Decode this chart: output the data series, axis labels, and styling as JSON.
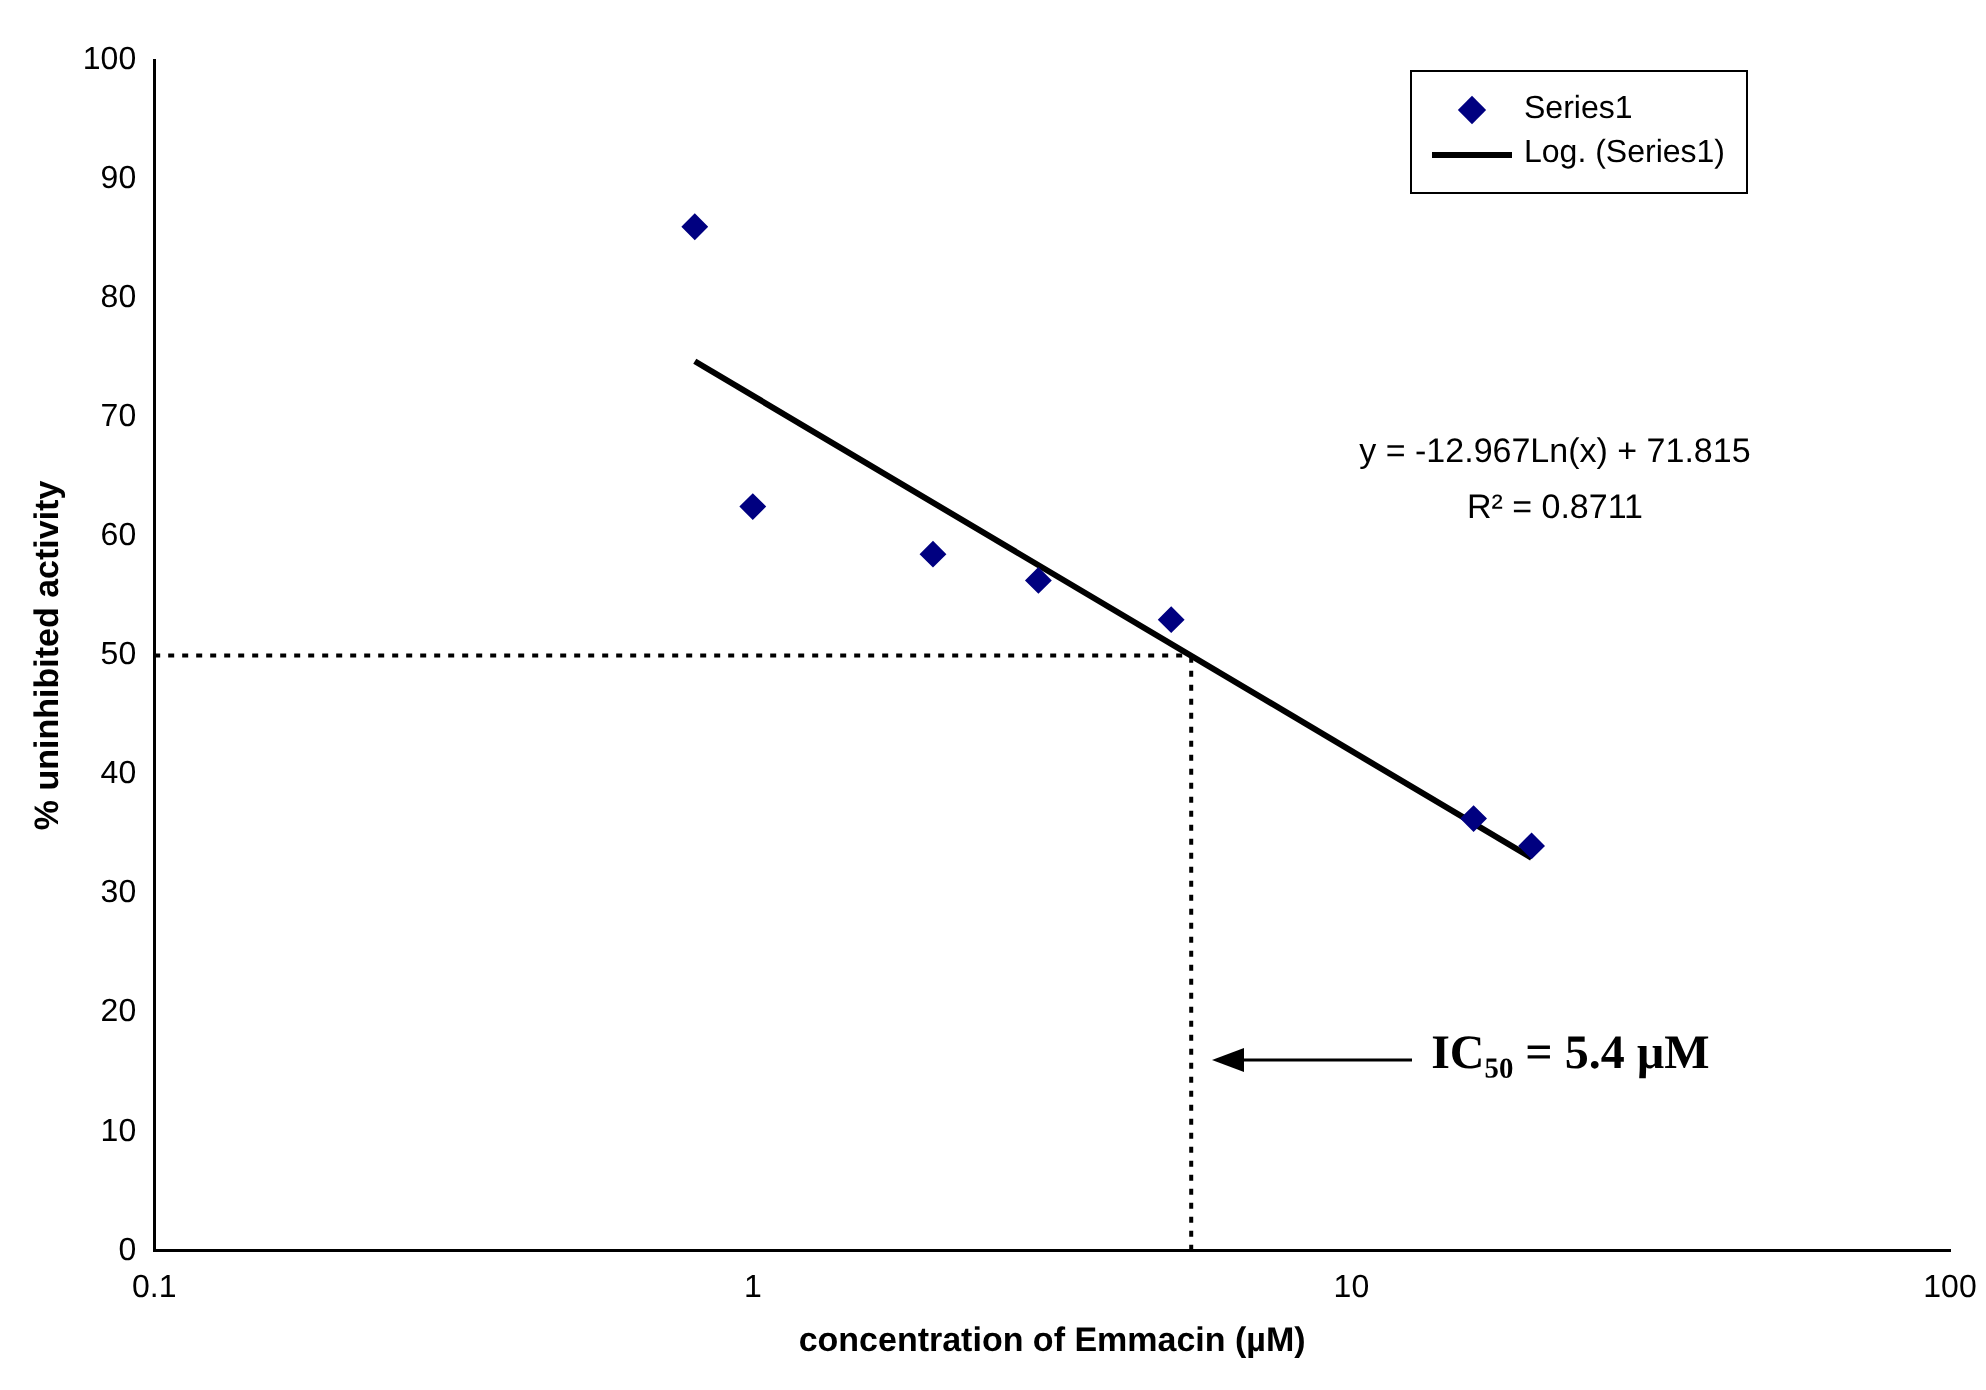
{
  "chart_data": {
    "type": "scatter",
    "xlabel": "concentration of Emmacin (µM)",
    "ylabel": "% uninhibited activity",
    "log": "x",
    "xlim": [
      0.1,
      100
    ],
    "xticks": [
      0.1,
      1,
      10,
      100
    ],
    "ylim": [
      0,
      100
    ],
    "yticks": [
      0,
      10,
      20,
      30,
      40,
      50,
      60,
      70,
      80,
      90,
      100
    ],
    "grid": false,
    "legend": "top right",
    "series": [
      {
        "name": "Series1",
        "marker": "diamond",
        "color": "#000080",
        "x": [
          0.8,
          1,
          2,
          3,
          5,
          16,
          20
        ],
        "values": [
          86,
          62.5,
          58.5,
          56.3,
          53,
          36.3,
          34
        ]
      },
      {
        "name": "Log. (Series1)",
        "type": "line",
        "color": "#000000",
        "line_style": "solid",
        "x": [
          0.8,
          20
        ],
        "values": [
          74.7,
          33
        ]
      }
    ],
    "ref_lines": [
      {
        "axis": "y",
        "value": 50,
        "line_style": "dotted",
        "color": "#000000"
      },
      {
        "axis": "x",
        "value": 5.4,
        "line_style": "dotted",
        "color": "#000000"
      }
    ],
    "annotations": [
      "y = -12.967Ln(x) + 71.815",
      "R² = 0.8711",
      "IC₅₀ = 5.4 µM"
    ]
  }
}
